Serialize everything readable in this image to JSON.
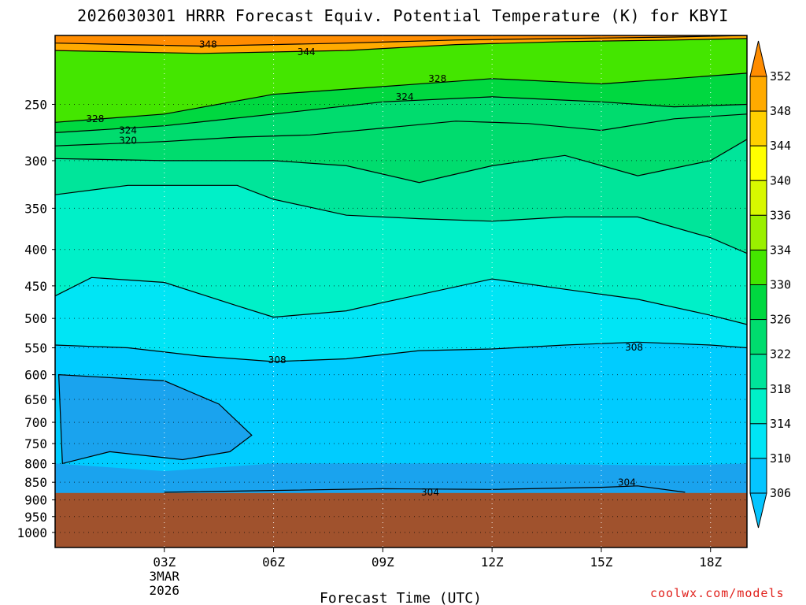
{
  "chart_data": {
    "type": "contour",
    "title": "2026030301 HRRR Forecast Equiv. Potential Temperature (K) for KBYI",
    "xlabel": "Forecast Time (UTC)",
    "ylabel": "",
    "x_ticks": [
      "03Z",
      "06Z",
      "09Z",
      "12Z",
      "15Z",
      "18Z"
    ],
    "x_date_label": [
      "3MAR",
      "2026"
    ],
    "x_range_hours_utc": [
      0,
      19
    ],
    "y_axis": "pressure (hPa), reversed, log-like",
    "y_ticks": [
      250,
      300,
      350,
      400,
      450,
      500,
      550,
      600,
      650,
      700,
      750,
      800,
      850,
      900,
      950,
      1000
    ],
    "y_range": [
      200,
      1050
    ],
    "ground_level_hpa": 880,
    "colorbar": {
      "levels": [
        306,
        310,
        314,
        318,
        322,
        326,
        330,
        334,
        336,
        340,
        344,
        348,
        352
      ],
      "colors": [
        "#05c5ff",
        "#00e5f5",
        "#00f0c8",
        "#00e59a",
        "#00dc6e",
        "#00d840",
        "#44e600",
        "#9af000",
        "#d8f800",
        "#ffff00",
        "#ffd000",
        "#ffaa00",
        "#ff8c00"
      ]
    },
    "contour_labels": [
      "348",
      "344",
      "328",
      "324",
      "328",
      "324",
      "320",
      "308",
      "308",
      "304",
      "304"
    ],
    "grid": true,
    "series": [
      {
        "level": 306,
        "points": [
          [
            0.1,
            600
          ],
          [
            3,
            612
          ],
          [
            4.5,
            660
          ],
          [
            5.4,
            730
          ],
          [
            4.8,
            770
          ],
          [
            3.5,
            790
          ],
          [
            1.5,
            770
          ],
          [
            0.2,
            800
          ]
        ]
      },
      {
        "level": 308,
        "points": [
          [
            0,
            545
          ],
          [
            2,
            550
          ],
          [
            4,
            565
          ],
          [
            6,
            575
          ],
          [
            8,
            570
          ],
          [
            10,
            555
          ],
          [
            12,
            552
          ],
          [
            14,
            545
          ],
          [
            16,
            540
          ],
          [
            18,
            545
          ],
          [
            19,
            550
          ]
        ]
      },
      {
        "level": 310,
        "points": [
          [
            0,
            465
          ],
          [
            1,
            438
          ],
          [
            3,
            445
          ],
          [
            5,
            480
          ],
          [
            6,
            498
          ],
          [
            8,
            488
          ],
          [
            9,
            475
          ],
          [
            12,
            440
          ],
          [
            14,
            455
          ],
          [
            16,
            470
          ],
          [
            18,
            495
          ],
          [
            19,
            510
          ]
        ]
      },
      {
        "level": 314,
        "points": [
          [
            0,
            335
          ],
          [
            2,
            325
          ],
          [
            5,
            325
          ],
          [
            6,
            340
          ],
          [
            8,
            358
          ],
          [
            10,
            362
          ],
          [
            12,
            365
          ],
          [
            14,
            360
          ],
          [
            16,
            360
          ],
          [
            18,
            385
          ],
          [
            19,
            405
          ]
        ]
      },
      {
        "level": 318,
        "points": [
          [
            0,
            298
          ],
          [
            3,
            300
          ],
          [
            6,
            300
          ],
          [
            8,
            305
          ],
          [
            10,
            322
          ],
          [
            12,
            305
          ],
          [
            14,
            295
          ],
          [
            16,
            315
          ],
          [
            18,
            300
          ],
          [
            19,
            280
          ]
        ]
      },
      {
        "level": 320,
        "points": [
          [
            0,
            286
          ],
          [
            3,
            282
          ],
          [
            5,
            278
          ],
          [
            7,
            276
          ],
          [
            9,
            270
          ],
          [
            11,
            264
          ],
          [
            13,
            266
          ],
          [
            15,
            272
          ],
          [
            17,
            262
          ],
          [
            19,
            258
          ]
        ]
      },
      {
        "level": 324,
        "points": [
          [
            0,
            274
          ],
          [
            3,
            268
          ],
          [
            6,
            258
          ],
          [
            9,
            248
          ],
          [
            12,
            244
          ],
          [
            15,
            248
          ],
          [
            17,
            252
          ],
          [
            19,
            250
          ]
        ]
      },
      {
        "level": 328,
        "points": [
          [
            0,
            265
          ],
          [
            3,
            258
          ],
          [
            6,
            242
          ],
          [
            9,
            236
          ],
          [
            12,
            230
          ],
          [
            15,
            234
          ],
          [
            17,
            230
          ],
          [
            19,
            226
          ]
        ]
      },
      {
        "level": 344,
        "points": [
          [
            0,
            210
          ],
          [
            4,
            212
          ],
          [
            8,
            210
          ],
          [
            11,
            206
          ],
          [
            14,
            204
          ],
          [
            17,
            203
          ],
          [
            19,
            202
          ]
        ]
      },
      {
        "level": 348,
        "points": [
          [
            0,
            205
          ],
          [
            4,
            207
          ],
          [
            8,
            205
          ],
          [
            11,
            203
          ],
          [
            14,
            202
          ],
          [
            17,
            201
          ],
          [
            19,
            200
          ]
        ]
      },
      {
        "level": 304,
        "points": [
          [
            3,
            878
          ],
          [
            6,
            873
          ],
          [
            9,
            868
          ],
          [
            12,
            870
          ],
          [
            15,
            864
          ],
          [
            16,
            860
          ],
          [
            17.3,
            878
          ]
        ]
      }
    ]
  },
  "credit": "coolwx.com/models"
}
